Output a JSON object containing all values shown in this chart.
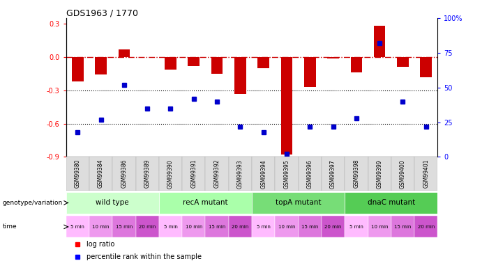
{
  "title": "GDS1963 / 1770",
  "samples": [
    "GSM99380",
    "GSM99384",
    "GSM99386",
    "GSM99389",
    "GSM99390",
    "GSM99391",
    "GSM99392",
    "GSM99393",
    "GSM99394",
    "GSM99395",
    "GSM99396",
    "GSM99397",
    "GSM99398",
    "GSM99399",
    "GSM99400",
    "GSM99401"
  ],
  "log_ratio": [
    -0.22,
    -0.16,
    0.07,
    0.0,
    -0.11,
    -0.08,
    -0.15,
    -0.33,
    -0.1,
    -0.88,
    -0.27,
    -0.01,
    -0.14,
    0.28,
    -0.09,
    -0.18
  ],
  "percentile_rank": [
    18,
    27,
    52,
    35,
    35,
    42,
    40,
    22,
    18,
    2,
    22,
    22,
    28,
    82,
    40,
    22
  ],
  "groups": [
    {
      "label": "wild type",
      "start": 0,
      "end": 3,
      "color": "#ccffcc"
    },
    {
      "label": "recA mutant",
      "start": 4,
      "end": 7,
      "color": "#aaffaa"
    },
    {
      "label": "topA mutant",
      "start": 8,
      "end": 11,
      "color": "#77dd77"
    },
    {
      "label": "dnaC mutant",
      "start": 12,
      "end": 15,
      "color": "#55cc55"
    }
  ],
  "time_labels": [
    "5 min",
    "10 min",
    "15 min",
    "20 min",
    "5 min",
    "10 min",
    "15 min",
    "20 min",
    "5 min",
    "10 min",
    "15 min",
    "20 min",
    "5 min",
    "10 min",
    "15 min",
    "20 min"
  ],
  "time_colors_cycle": [
    "#ffbbff",
    "#ee99ee",
    "#dd77dd",
    "#cc55cc"
  ],
  "ylim_left": [
    -0.9,
    0.35
  ],
  "ylim_right": [
    0,
    100
  ],
  "bar_color": "#cc0000",
  "dot_color": "#0000cc",
  "bar_width": 0.5,
  "dotline1": -0.3,
  "dotline2": -0.6,
  "left_ticks": [
    0.3,
    0.0,
    -0.3,
    -0.6,
    -0.9
  ],
  "right_ticks": [
    100,
    75,
    50,
    25,
    0
  ]
}
